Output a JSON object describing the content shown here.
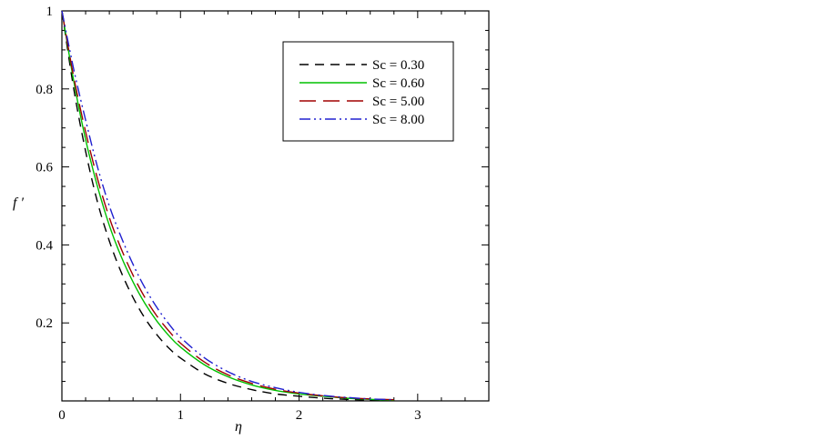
{
  "chart_data": {
    "type": "line",
    "title": "",
    "xlabel": "η",
    "ylabel": "f ′",
    "xlim": [
      0,
      3.6
    ],
    "ylim": [
      0,
      1
    ],
    "xticks": [
      0,
      1,
      2,
      3
    ],
    "yticks": [
      0.2,
      0.4,
      0.6,
      0.8,
      1
    ],
    "ytick_labels": [
      "0.2",
      "0.4",
      "0.6",
      "0.8",
      "1"
    ],
    "xtick_labels": [
      "0",
      "1",
      "2",
      "3"
    ],
    "legend_position": "top-right",
    "grid": false,
    "x": [
      0,
      0.1,
      0.2,
      0.3,
      0.4,
      0.5,
      0.6,
      0.7,
      0.8,
      0.9,
      1.0,
      1.2,
      1.4,
      1.6,
      1.8,
      2.0,
      2.2,
      2.4,
      2.6,
      2.8
    ],
    "series": [
      {
        "name": "Sc = 0.30",
        "color": "#000000",
        "dash": "10,7",
        "values": [
          1.0,
          0.8,
          0.64,
          0.51,
          0.41,
          0.33,
          0.265,
          0.212,
          0.17,
          0.136,
          0.11,
          0.07,
          0.045,
          0.029,
          0.018,
          0.012,
          0.007,
          0.004,
          0.002,
          0.001
        ]
      },
      {
        "name": "Sc = 0.60",
        "color": "#00c000",
        "dash": "",
        "values": [
          1.0,
          0.82,
          0.67,
          0.55,
          0.45,
          0.37,
          0.305,
          0.25,
          0.205,
          0.168,
          0.138,
          0.093,
          0.062,
          0.041,
          0.027,
          0.018,
          0.012,
          0.007,
          0.004,
          0.002
        ]
      },
      {
        "name": "Sc = 5.00",
        "color": "#a00000",
        "dash": "18,8",
        "values": [
          1.0,
          0.83,
          0.69,
          0.57,
          0.47,
          0.39,
          0.322,
          0.265,
          0.218,
          0.18,
          0.148,
          0.1,
          0.067,
          0.045,
          0.03,
          0.02,
          0.013,
          0.008,
          0.005,
          0.003
        ]
      },
      {
        "name": "Sc = 8.00",
        "color": "#2020d0",
        "dash": "12,4,2,4,2,4",
        "values": [
          1.0,
          0.85,
          0.72,
          0.6,
          0.5,
          0.42,
          0.35,
          0.29,
          0.24,
          0.198,
          0.163,
          0.111,
          0.075,
          0.05,
          0.034,
          0.022,
          0.014,
          0.009,
          0.005,
          0.003
        ]
      }
    ]
  }
}
